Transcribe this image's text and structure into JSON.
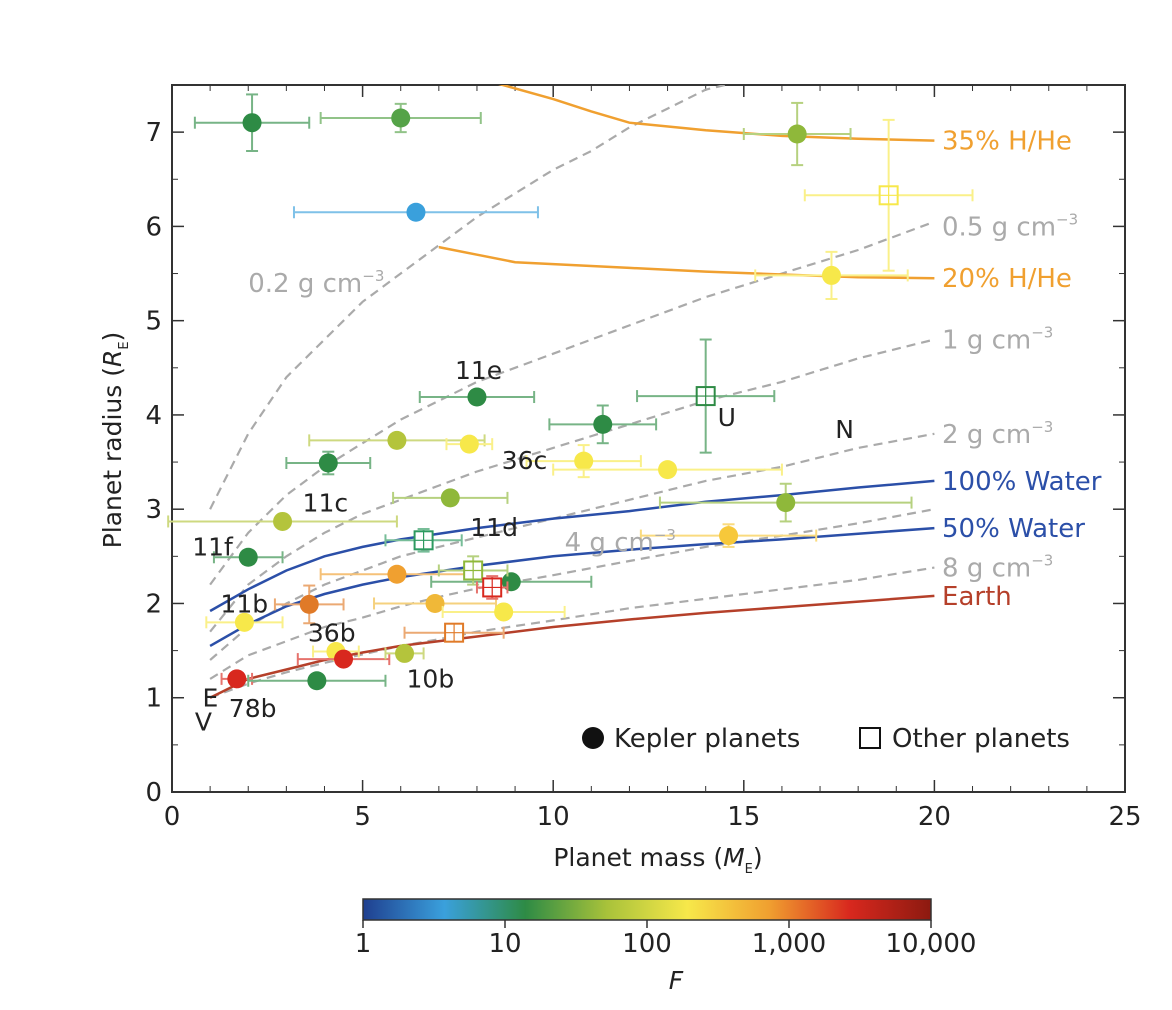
{
  "chart_data": {
    "type": "scatter",
    "xlabel_prefix": "Planet mass (",
    "xlabel_var": "M",
    "xlabel_sub": "E",
    "xlabel_suffix": ")",
    "ylabel_prefix": "Planet radius (",
    "ylabel_var": "R",
    "ylabel_sub": "E",
    "ylabel_suffix": ")",
    "xlim": [
      0,
      25
    ],
    "ylim": [
      0,
      7.5
    ],
    "xticks": [
      0,
      5,
      10,
      15,
      20,
      25
    ],
    "yticks": [
      0,
      1,
      2,
      3,
      4,
      5,
      6,
      7
    ],
    "grid": false,
    "legend": {
      "placement": "bottom-right",
      "kepler_label": "Kepler planets",
      "other_label": "Other planets"
    },
    "colorbar": {
      "label": "F",
      "scale": "log",
      "ticks": [
        "1",
        "10",
        "100",
        "1,000",
        "10,000"
      ],
      "colors": [
        "#1f3f8f",
        "#3aa0dc",
        "#2e8b45",
        "#a8c23a",
        "#f7e84a",
        "#f0a030",
        "#d8281e",
        "#8c1a10"
      ]
    },
    "kepler_planets": [
      {
        "x": 2.1,
        "y": 7.1,
        "xerr": 1.5,
        "yerr": 0.3,
        "color": "#2e8b45",
        "label": ""
      },
      {
        "x": 6.0,
        "y": 7.15,
        "xerr": 2.1,
        "yerr": 0.15,
        "color": "#55a348",
        "label": ""
      },
      {
        "x": 6.4,
        "y": 6.15,
        "xerr": 3.2,
        "yerr": 0.0,
        "color": "#3aa0dc",
        "label": ""
      },
      {
        "x": 16.4,
        "y": 6.98,
        "xerr": 1.4,
        "yerr": 0.33,
        "color": "#8fb83a",
        "label": ""
      },
      {
        "x": 17.3,
        "y": 5.48,
        "xerr": 2.0,
        "yerr": 0.25,
        "color": "#f7e84a",
        "label": ""
      },
      {
        "x": 8.0,
        "y": 4.19,
        "xerr": 1.5,
        "yerr": 0.0,
        "color": "#2e8b45",
        "label": "11e"
      },
      {
        "x": 11.3,
        "y": 3.9,
        "xerr": 1.4,
        "yerr": 0.2,
        "color": "#2e8b45",
        "label": ""
      },
      {
        "x": 5.9,
        "y": 3.73,
        "xerr": 2.3,
        "yerr": 0.05,
        "color": "#b4c43c",
        "label": ""
      },
      {
        "x": 7.8,
        "y": 3.69,
        "xerr": 0.6,
        "yerr": 0.0,
        "color": "#f7e84a",
        "label": ""
      },
      {
        "x": 4.1,
        "y": 3.49,
        "xerr": 1.1,
        "yerr": 0.12,
        "color": "#2e8b45",
        "label": ""
      },
      {
        "x": 10.8,
        "y": 3.51,
        "xerr": 1.5,
        "yerr": 0.17,
        "color": "#f7e84a",
        "label": "36c"
      },
      {
        "x": 13.0,
        "y": 3.42,
        "xerr": 3.0,
        "yerr": 0.05,
        "color": "#f7e84a",
        "label": ""
      },
      {
        "x": 7.3,
        "y": 3.12,
        "xerr": 1.5,
        "yerr": 0.0,
        "color": "#8fb83a",
        "label": "11d"
      },
      {
        "x": 16.1,
        "y": 3.07,
        "xerr": 3.3,
        "yerr": 0.2,
        "color": "#8fb83a",
        "label": ""
      },
      {
        "x": 2.9,
        "y": 2.87,
        "xerr": 3.0,
        "yerr": 0.0,
        "color": "#b4c43c",
        "label": "11c"
      },
      {
        "x": 14.6,
        "y": 2.72,
        "xerr": 2.3,
        "yerr": 0.12,
        "color": "#f7c83a",
        "label": ""
      },
      {
        "x": 2.0,
        "y": 2.49,
        "xerr": 0.9,
        "yerr": 0.07,
        "color": "#2e8b45",
        "label": "11f"
      },
      {
        "x": 5.9,
        "y": 2.31,
        "xerr": 2.0,
        "yerr": 0.0,
        "color": "#f0a030",
        "label": ""
      },
      {
        "x": 8.9,
        "y": 2.23,
        "xerr": 2.1,
        "yerr": 0.0,
        "color": "#2e8b45",
        "label": ""
      },
      {
        "x": 3.6,
        "y": 1.99,
        "xerr": 0.9,
        "yerr": 0.2,
        "color": "#e07a28",
        "label": ""
      },
      {
        "x": 6.9,
        "y": 2.0,
        "xerr": 1.6,
        "yerr": 0.07,
        "color": "#f0b838",
        "label": ""
      },
      {
        "x": 8.7,
        "y": 1.91,
        "xerr": 1.6,
        "yerr": 0.0,
        "color": "#f7e84a",
        "label": ""
      },
      {
        "x": 1.9,
        "y": 1.8,
        "xerr": 1.0,
        "yerr": 0.0,
        "color": "#f7e84a",
        "label": "11b"
      },
      {
        "x": 4.3,
        "y": 1.49,
        "xerr": 0.6,
        "yerr": 0.07,
        "color": "#f7e84a",
        "label": "36b"
      },
      {
        "x": 4.5,
        "y": 1.41,
        "xerr": 1.2,
        "yerr": 0.0,
        "color": "#d8281e",
        "label": ""
      },
      {
        "x": 6.1,
        "y": 1.47,
        "xerr": 0.5,
        "yerr": 0.0,
        "color": "#b4c43c",
        "label": "10b"
      },
      {
        "x": 1.7,
        "y": 1.2,
        "xerr": 0.4,
        "yerr": 0.0,
        "color": "#d8281e",
        "label": "78b"
      },
      {
        "x": 3.8,
        "y": 1.18,
        "xerr": 1.8,
        "yerr": 0.0,
        "color": "#2e8b45",
        "label": ""
      }
    ],
    "other_planets": [
      {
        "x": 18.8,
        "y": 6.33,
        "xerr": 2.2,
        "yerr": 0.8,
        "color": "#f7e84a",
        "label": ""
      },
      {
        "x": 14.0,
        "y": 4.2,
        "xerr": 1.8,
        "yerr": 0.6,
        "color": "#2e8b45",
        "label": "U"
      },
      {
        "x": 6.6,
        "y": 2.67,
        "xerr": 1.0,
        "yerr": 0.12,
        "color": "#2e9a60",
        "label": ""
      },
      {
        "x": 7.9,
        "y": 2.35,
        "xerr": 0.9,
        "yerr": 0.15,
        "color": "#8fb83a",
        "label": ""
      },
      {
        "x": 8.4,
        "y": 2.17,
        "xerr": 0.4,
        "yerr": 0.12,
        "color": "#d8281e",
        "label": ""
      },
      {
        "x": 7.4,
        "y": 1.69,
        "xerr": 1.3,
        "yerr": 0.05,
        "color": "#e07a28",
        "label": ""
      }
    ],
    "other_labels": [
      {
        "x": 17.4,
        "y": 3.85,
        "text": "N"
      },
      {
        "x": 0.8,
        "y": 1.0,
        "text": "E"
      },
      {
        "x": 0.6,
        "y": 0.75,
        "text": "V"
      }
    ],
    "density_curves": [
      {
        "name": "0.2 g cm",
        "sup": "−3",
        "color": "#aaaaaa",
        "label_pos": [
          2.0,
          5.4
        ],
        "points": [
          [
            1,
            3.0
          ],
          [
            2,
            3.8
          ],
          [
            3,
            4.4
          ],
          [
            4,
            4.8
          ],
          [
            5,
            5.2
          ],
          [
            6,
            5.5
          ],
          [
            7,
            5.8
          ],
          [
            8,
            6.1
          ],
          [
            9,
            6.35
          ],
          [
            10,
            6.6
          ],
          [
            11,
            6.8
          ],
          [
            12,
            7.05
          ],
          [
            13,
            7.25
          ],
          [
            14,
            7.45
          ],
          [
            15,
            7.55
          ]
        ]
      },
      {
        "name": "0.5 g cm",
        "sup": "−3",
        "color": "#aaaaaa",
        "label_pos": [
          20.2,
          6.0
        ],
        "points": [
          [
            1,
            2.2
          ],
          [
            2,
            2.75
          ],
          [
            3,
            3.15
          ],
          [
            4,
            3.45
          ],
          [
            5,
            3.7
          ],
          [
            6,
            3.95
          ],
          [
            7,
            4.15
          ],
          [
            8,
            4.35
          ],
          [
            10,
            4.65
          ],
          [
            12,
            4.95
          ],
          [
            14,
            5.25
          ],
          [
            16,
            5.5
          ],
          [
            18,
            5.75
          ],
          [
            20,
            6.05
          ]
        ]
      },
      {
        "name": "1 g cm",
        "sup": "−3",
        "color": "#aaaaaa",
        "label_pos": [
          20.2,
          4.8
        ],
        "points": [
          [
            1,
            1.7
          ],
          [
            2,
            2.2
          ],
          [
            3,
            2.5
          ],
          [
            4,
            2.75
          ],
          [
            5,
            2.95
          ],
          [
            6,
            3.1
          ],
          [
            7,
            3.25
          ],
          [
            8,
            3.4
          ],
          [
            10,
            3.65
          ],
          [
            12,
            3.9
          ],
          [
            14,
            4.15
          ],
          [
            16,
            4.35
          ],
          [
            18,
            4.6
          ],
          [
            20,
            4.8
          ]
        ]
      },
      {
        "name": "2 g cm",
        "sup": "−3",
        "color": "#aaaaaa",
        "label_pos": [
          20.2,
          3.8
        ],
        "points": [
          [
            1,
            1.4
          ],
          [
            2,
            1.75
          ],
          [
            3,
            2.0
          ],
          [
            4,
            2.2
          ],
          [
            5,
            2.35
          ],
          [
            6,
            2.5
          ],
          [
            7,
            2.6
          ],
          [
            8,
            2.7
          ],
          [
            10,
            2.9
          ],
          [
            12,
            3.1
          ],
          [
            14,
            3.3
          ],
          [
            16,
            3.45
          ],
          [
            18,
            3.65
          ],
          [
            20,
            3.8
          ]
        ]
      },
      {
        "name": "4 g cm",
        "sup": "−3",
        "color": "#aaaaaa",
        "label_pos": [
          10.3,
          2.65
        ],
        "points": [
          [
            1,
            1.2
          ],
          [
            2,
            1.45
          ],
          [
            3,
            1.6
          ],
          [
            4,
            1.75
          ],
          [
            5,
            1.85
          ],
          [
            6,
            1.97
          ],
          [
            7,
            2.07
          ],
          [
            8,
            2.16
          ],
          [
            10,
            2.3
          ],
          [
            12,
            2.45
          ],
          [
            14,
            2.6
          ],
          [
            16,
            2.72
          ],
          [
            18,
            2.85
          ],
          [
            20,
            3.0
          ]
        ]
      },
      {
        "name": "8 g cm",
        "sup": "−3",
        "color": "#aaaaaa",
        "label_pos": [
          20.2,
          2.38
        ],
        "points": [
          [
            1,
            1.0
          ],
          [
            2,
            1.15
          ],
          [
            3,
            1.27
          ],
          [
            4,
            1.37
          ],
          [
            5,
            1.46
          ],
          [
            6,
            1.55
          ],
          [
            7,
            1.62
          ],
          [
            8,
            1.7
          ],
          [
            10,
            1.82
          ],
          [
            12,
            1.95
          ],
          [
            14,
            2.05
          ],
          [
            16,
            2.15
          ],
          [
            18,
            2.25
          ],
          [
            20,
            2.38
          ]
        ]
      }
    ],
    "composition_curves": [
      {
        "name": "35% H/He",
        "color": "#f0a030",
        "label_pos": [
          20.2,
          6.91
        ],
        "points": [
          [
            8.5,
            7.52
          ],
          [
            10,
            7.35
          ],
          [
            11,
            7.22
          ],
          [
            12,
            7.1
          ],
          [
            14,
            7.02
          ],
          [
            16,
            6.96
          ],
          [
            18,
            6.93
          ],
          [
            20,
            6.91
          ]
        ]
      },
      {
        "name": "20% H/He",
        "color": "#f0a030",
        "label_pos": [
          20.2,
          5.45
        ],
        "points": [
          [
            7,
            5.78
          ],
          [
            8,
            5.7
          ],
          [
            9,
            5.62
          ],
          [
            10,
            5.6
          ],
          [
            12,
            5.56
          ],
          [
            14,
            5.52
          ],
          [
            16,
            5.49
          ],
          [
            18,
            5.46
          ],
          [
            20,
            5.45
          ]
        ]
      },
      {
        "name": "100% Water",
        "color": "#2b4fa8",
        "label_pos": [
          20.2,
          3.3
        ],
        "points": [
          [
            1,
            1.92
          ],
          [
            2,
            2.15
          ],
          [
            3,
            2.35
          ],
          [
            4,
            2.5
          ],
          [
            5,
            2.6
          ],
          [
            6,
            2.68
          ],
          [
            8,
            2.8
          ],
          [
            10,
            2.9
          ],
          [
            12,
            2.98
          ],
          [
            14,
            3.08
          ],
          [
            16,
            3.15
          ],
          [
            18,
            3.23
          ],
          [
            20,
            3.3
          ]
        ]
      },
      {
        "name": "50% Water",
        "color": "#2b4fa8",
        "label_pos": [
          20.2,
          2.8
        ],
        "points": [
          [
            1,
            1.55
          ],
          [
            2,
            1.78
          ],
          [
            3,
            1.97
          ],
          [
            4,
            2.1
          ],
          [
            5,
            2.2
          ],
          [
            6,
            2.28
          ],
          [
            8,
            2.4
          ],
          [
            10,
            2.5
          ],
          [
            12,
            2.57
          ],
          [
            14,
            2.63
          ],
          [
            16,
            2.68
          ],
          [
            18,
            2.74
          ],
          [
            20,
            2.8
          ]
        ]
      },
      {
        "name": "Earth",
        "color": "#b5402a",
        "label_pos": [
          20.2,
          2.08
        ],
        "points": [
          [
            1,
            1.0
          ],
          [
            2,
            1.2
          ],
          [
            3,
            1.3
          ],
          [
            4,
            1.4
          ],
          [
            5,
            1.48
          ],
          [
            6,
            1.55
          ],
          [
            8,
            1.65
          ],
          [
            10,
            1.75
          ],
          [
            12,
            1.83
          ],
          [
            14,
            1.9
          ],
          [
            16,
            1.96
          ],
          [
            18,
            2.02
          ],
          [
            20,
            2.08
          ]
        ]
      }
    ]
  }
}
